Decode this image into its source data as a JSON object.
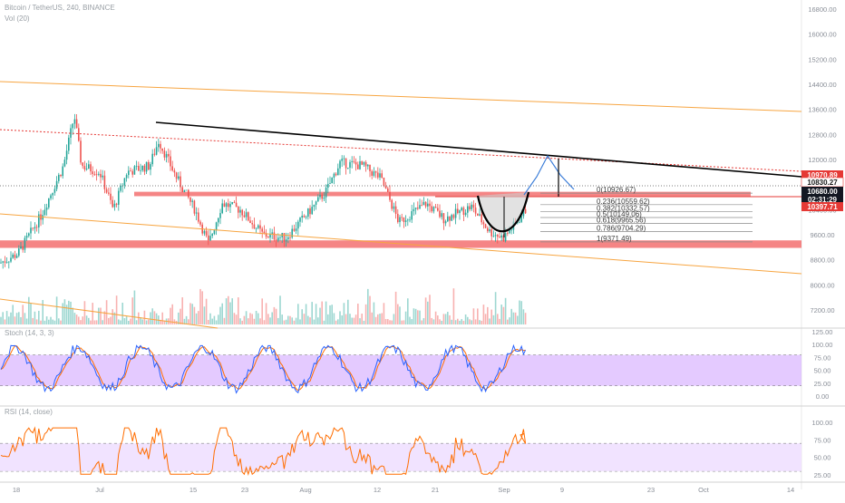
{
  "header": {
    "symbol": "Bitcoin / TetherUS, 240, BINANCE",
    "vol_label": "Vol (20)"
  },
  "chart_data": [
    {
      "type": "candlestick",
      "title": "Bitcoin / TetherUS, 240, BINANCE",
      "y_ticks": [
        16800,
        16000,
        15200,
        14400,
        13600,
        12800,
        12000,
        11200,
        10400,
        9600,
        8800,
        8000,
        7200
      ],
      "x_ticks": [
        "18",
        "Jul",
        "15",
        "23",
        "Aug",
        "12",
        "21",
        "Sep",
        "9",
        "23",
        "Oct",
        "14"
      ],
      "price_tags": [
        {
          "value": "10970.89",
          "style": "red"
        },
        {
          "value": "10830.27",
          "style": "white"
        },
        {
          "value": "10680.00",
          "style": "black"
        },
        {
          "value": "02:31:29",
          "style": "black"
        },
        {
          "value": "10397.71",
          "style": "red"
        }
      ],
      "fibonacci": [
        {
          "label": "0(10926.67)",
          "ratio": 0,
          "price": 10926.67
        },
        {
          "label": "0.236(10559.62)",
          "ratio": 0.236,
          "price": 10559.62
        },
        {
          "label": "0.382(10332.57)",
          "ratio": 0.382,
          "price": 10332.57
        },
        {
          "label": "0.5(10149.06)",
          "ratio": 0.5,
          "price": 10149.06
        },
        {
          "label": "0.618(9965.56)",
          "ratio": 0.618,
          "price": 9965.56
        },
        {
          "label": "0.786(9704.29)",
          "ratio": 0.786,
          "price": 9704.29
        },
        {
          "label": "1(9371.49)",
          "ratio": 1,
          "price": 9371.49
        }
      ],
      "trendlines": [
        "descending resistance",
        "upper channel",
        "lower channel",
        "dotted resistance"
      ],
      "zones": [
        "supply zone 10830-10970",
        "demand zone 9200-9400"
      ],
      "pattern": "cup"
    },
    {
      "type": "line",
      "title": "Stoch (14, 3, 3)",
      "y_ticks": [
        "125.00",
        "100.00",
        "75.00",
        "50.00",
        "25.00",
        "0.00"
      ],
      "band": [
        20,
        80
      ],
      "series": [
        {
          "name": "%K",
          "color": "#2962ff"
        },
        {
          "name": "%D",
          "color": "#ff6d00"
        }
      ]
    },
    {
      "type": "line",
      "title": "RSI (14, close)",
      "y_ticks": [
        "100.00",
        "75.00",
        "50.00",
        "25.00"
      ],
      "band": [
        30,
        70
      ],
      "series": [
        {
          "name": "RSI",
          "color": "#ff6d00"
        }
      ]
    }
  ],
  "stoch_label": "Stoch (14, 3, 3)",
  "rsi_label": "RSI (14, close)",
  "colors": {
    "up": "#26a69a",
    "down": "#ef5350",
    "zone": "#f25c5c",
    "channel": "#f7a541",
    "stoch_band": "#d9b3ff",
    "rsi_band": "#f0e0ff"
  }
}
